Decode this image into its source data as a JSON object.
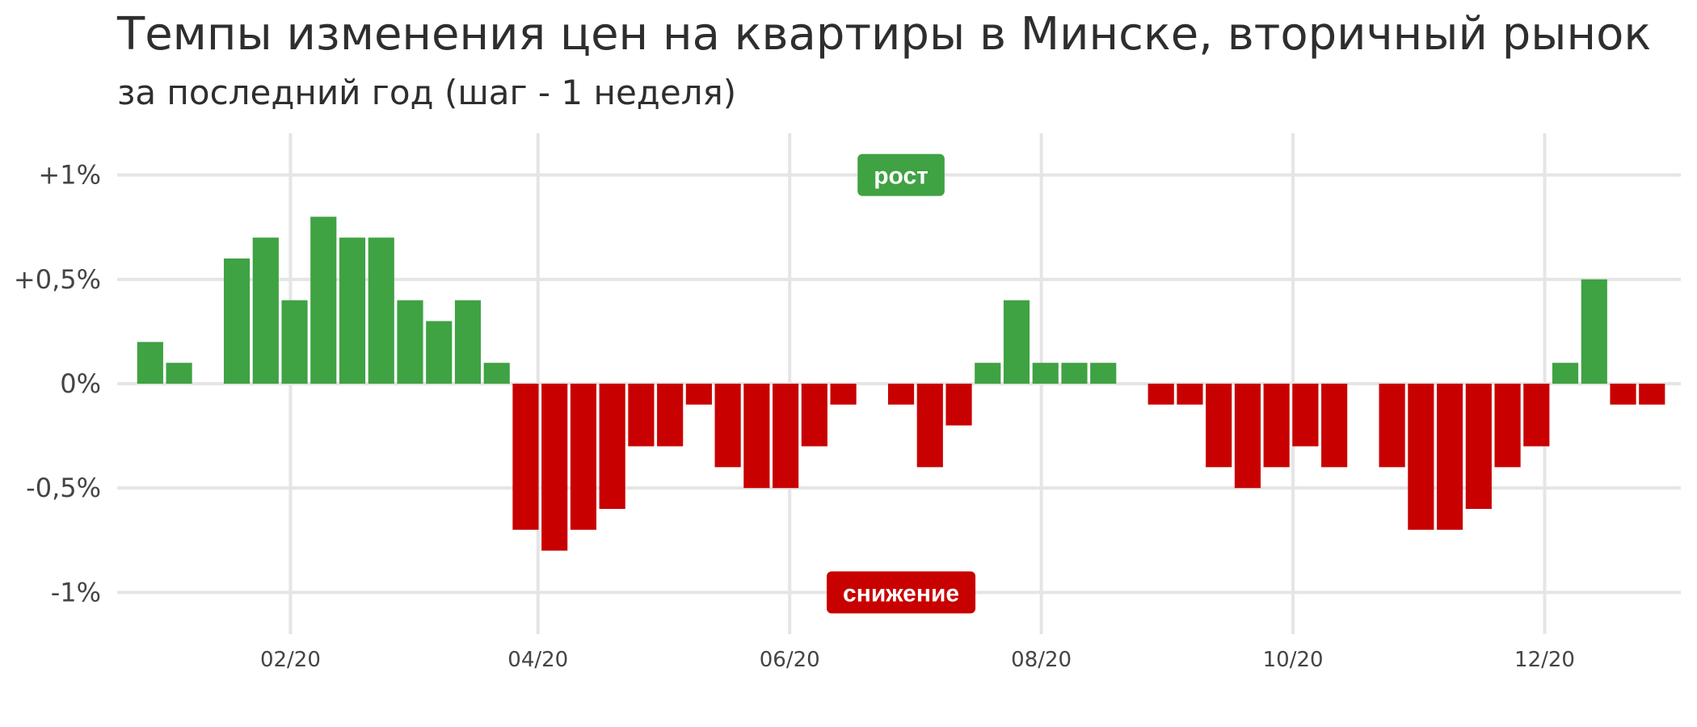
{
  "title": "Темпы изменения цен на квартиры в Минске, вторичный рынок",
  "subtitle": "за последний год (шаг - 1 неделя)",
  "colors": {
    "positive": "#3fa243",
    "negative": "#c80000",
    "grid": "#e5e5e5"
  },
  "chart_data": {
    "type": "bar",
    "title": "Темпы изменения цен на квартиры в Минске, вторичный рынок",
    "subtitle": "за последний год (шаг - 1 неделя)",
    "xlabel": "",
    "ylabel": "",
    "unit": "%",
    "ylim": [
      -1.2,
      1.2
    ],
    "x_range": [
      "2019-12-21",
      "2021-01-03"
    ],
    "y_ticks": [
      {
        "value": 1,
        "label": "+1%"
      },
      {
        "value": 0.5,
        "label": "+0,5%"
      },
      {
        "value": 0,
        "label": "0%"
      },
      {
        "value": -0.5,
        "label": "-0,5%"
      },
      {
        "value": -1,
        "label": "-1%"
      }
    ],
    "x_ticks": [
      {
        "date": "2020-02-01",
        "label": "02/20"
      },
      {
        "date": "2020-04-01",
        "label": "04/20"
      },
      {
        "date": "2020-06-01",
        "label": "06/20"
      },
      {
        "date": "2020-08-01",
        "label": "08/20"
      },
      {
        "date": "2020-10-01",
        "label": "10/20"
      },
      {
        "date": "2020-12-01",
        "label": "12/20"
      }
    ],
    "grid": true,
    "legend": "none",
    "x": [
      "2019-12-29",
      "2020-01-05",
      "2020-01-12",
      "2020-01-19",
      "2020-01-26",
      "2020-02-02",
      "2020-02-09",
      "2020-02-16",
      "2020-02-23",
      "2020-03-01",
      "2020-03-08",
      "2020-03-15",
      "2020-03-22",
      "2020-03-29",
      "2020-04-05",
      "2020-04-12",
      "2020-04-19",
      "2020-04-26",
      "2020-05-03",
      "2020-05-10",
      "2020-05-17",
      "2020-05-24",
      "2020-05-31",
      "2020-06-07",
      "2020-06-14",
      "2020-06-21",
      "2020-06-28",
      "2020-07-05",
      "2020-07-12",
      "2020-07-19",
      "2020-07-26",
      "2020-08-02",
      "2020-08-09",
      "2020-08-16",
      "2020-08-23",
      "2020-08-30",
      "2020-09-06",
      "2020-09-13",
      "2020-09-20",
      "2020-09-27",
      "2020-10-04",
      "2020-10-11",
      "2020-10-18",
      "2020-10-25",
      "2020-11-01",
      "2020-11-08",
      "2020-11-15",
      "2020-11-22",
      "2020-11-29",
      "2020-12-06",
      "2020-12-13",
      "2020-12-20",
      "2020-12-27"
    ],
    "values": [
      0.2,
      0.1,
      0,
      0.6,
      0.7,
      0.4,
      0.8,
      0.7,
      0.7,
      0.4,
      0.3,
      0.4,
      0.1,
      -0.7,
      -0.8,
      -0.7,
      -0.6,
      -0.3,
      -0.3,
      -0.1,
      -0.4,
      -0.5,
      -0.5,
      -0.3,
      -0.1,
      0,
      -0.1,
      -0.4,
      -0.2,
      0.1,
      0.4,
      0.1,
      0.1,
      0.1,
      0,
      -0.1,
      -0.1,
      -0.4,
      -0.5,
      -0.4,
      -0.3,
      -0.4,
      0,
      -0.4,
      -0.7,
      -0.7,
      -0.6,
      -0.4,
      -0.3,
      0.1,
      0.5,
      -0.1,
      -0.1
    ],
    "annotations": [
      {
        "text": "рост",
        "date": "2020-06-28",
        "value": 1,
        "color": "#3fa243"
      },
      {
        "text": "снижение",
        "date": "2020-06-28",
        "value": -1,
        "color": "#c80000"
      }
    ]
  }
}
